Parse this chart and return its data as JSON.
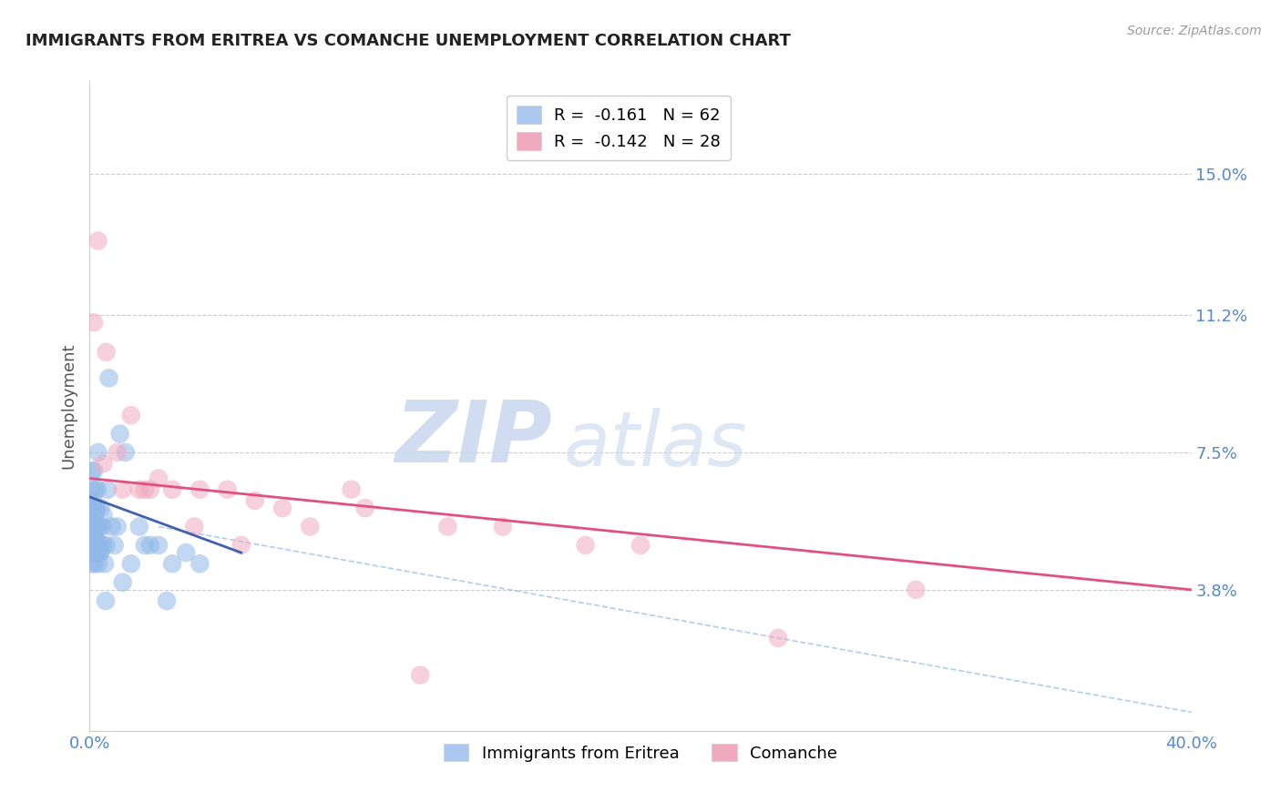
{
  "title": "IMMIGRANTS FROM ERITREA VS COMANCHE UNEMPLOYMENT CORRELATION CHART",
  "source_text": "Source: ZipAtlas.com",
  "ylabel": "Unemployment",
  "xlim": [
    0.0,
    40.0
  ],
  "ylim": [
    0.0,
    17.5
  ],
  "yticks": [
    3.8,
    7.5,
    11.2,
    15.0
  ],
  "xtick_labels": [
    "0.0%",
    "40.0%"
  ],
  "ytick_labels": [
    "3.8%",
    "7.5%",
    "11.2%",
    "15.0%"
  ],
  "legend1_label": "R =  -0.161   N = 62",
  "legend2_label": "R =  -0.142   N = 28",
  "legend1_color": "#aac8f0",
  "legend2_color": "#f0aac0",
  "scatter1_color": "#90b8e8",
  "scatter2_color": "#f0aac0",
  "line1_color": "#4060b0",
  "line2_color": "#e05080",
  "dashed_line_color": "#90b8e8",
  "watermark_zip": "ZIP",
  "watermark_atlas": "atlas",
  "title_color": "#222222",
  "axis_color": "#5588cc",
  "grid_color": "#cccccc",
  "blue_scatter_x": [
    0.05,
    0.05,
    0.08,
    0.08,
    0.1,
    0.1,
    0.12,
    0.12,
    0.12,
    0.15,
    0.15,
    0.15,
    0.18,
    0.18,
    0.2,
    0.2,
    0.2,
    0.22,
    0.22,
    0.25,
    0.25,
    0.28,
    0.28,
    0.3,
    0.3,
    0.35,
    0.35,
    0.4,
    0.4,
    0.45,
    0.5,
    0.55,
    0.6,
    0.65,
    0.7,
    0.8,
    0.9,
    1.0,
    1.1,
    1.3,
    1.5,
    1.8,
    2.0,
    2.2,
    2.5,
    3.0,
    3.5,
    4.0,
    0.06,
    0.09,
    0.11,
    0.13,
    0.16,
    0.19,
    0.23,
    0.26,
    0.32,
    0.38,
    0.48,
    0.58,
    1.2,
    2.8
  ],
  "blue_scatter_y": [
    5.5,
    6.5,
    4.5,
    7.0,
    5.0,
    6.0,
    4.8,
    5.5,
    6.2,
    5.0,
    6.0,
    7.0,
    4.5,
    5.8,
    5.0,
    5.5,
    6.5,
    4.8,
    5.2,
    5.5,
    6.0,
    5.0,
    6.5,
    5.5,
    7.5,
    4.8,
    5.5,
    5.0,
    6.0,
    5.5,
    5.8,
    4.5,
    5.0,
    6.5,
    9.5,
    5.5,
    5.0,
    5.5,
    8.0,
    7.5,
    4.5,
    5.5,
    5.0,
    5.0,
    5.0,
    4.5,
    4.8,
    4.5,
    5.5,
    6.0,
    5.0,
    4.8,
    5.2,
    5.5,
    6.0,
    5.0,
    4.5,
    4.8,
    5.0,
    3.5,
    4.0,
    3.5
  ],
  "pink_scatter_x": [
    0.15,
    0.3,
    0.6,
    1.0,
    1.5,
    2.0,
    2.5,
    3.0,
    4.0,
    5.0,
    6.0,
    7.0,
    8.0,
    9.5,
    13.0,
    18.0,
    20.0,
    25.0,
    30.0,
    0.5,
    1.2,
    1.8,
    2.2,
    3.8,
    5.5,
    10.0,
    12.0,
    15.0
  ],
  "pink_scatter_y": [
    11.0,
    13.2,
    10.2,
    7.5,
    8.5,
    6.5,
    6.8,
    6.5,
    6.5,
    6.5,
    6.2,
    6.0,
    5.5,
    6.5,
    5.5,
    5.0,
    5.0,
    2.5,
    3.8,
    7.2,
    6.5,
    6.5,
    6.5,
    5.5,
    5.0,
    6.0,
    1.5,
    5.5
  ],
  "line1_x": [
    0.0,
    5.5
  ],
  "line1_y": [
    6.3,
    4.8
  ],
  "line2_x": [
    0.0,
    40.0
  ],
  "line2_y": [
    6.8,
    3.8
  ],
  "dashed_line_x": [
    2.5,
    40.0
  ],
  "dashed_line_y": [
    5.5,
    0.5
  ]
}
